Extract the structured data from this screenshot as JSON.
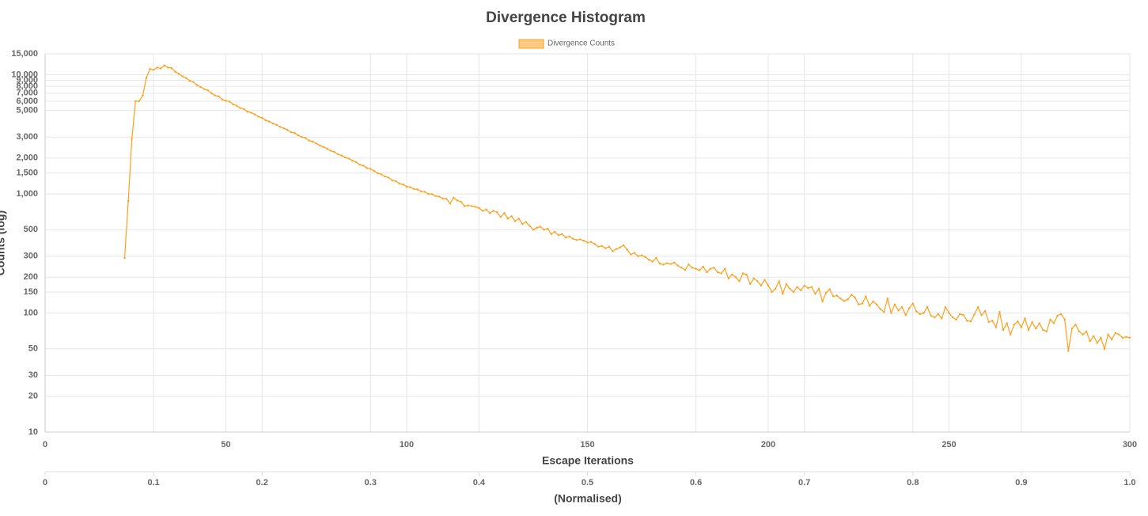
{
  "chart_data": {
    "type": "line",
    "title": "Divergence Histogram",
    "xlabel": "Escape Iterations",
    "ylabel": "Counts (log)",
    "x2label": "(Normalised)",
    "log_y": true,
    "grid": true,
    "legend": "top",
    "xlim": [
      0,
      300
    ],
    "xticks": [
      0,
      50,
      100,
      150,
      200,
      250,
      300
    ],
    "x2lim": [
      0,
      1
    ],
    "x2ticks": [
      0,
      0.1,
      0.2,
      0.3,
      0.4,
      0.5,
      0.6,
      0.7,
      0.8,
      0.9,
      {
        "value": 1,
        "label": "1.0"
      }
    ],
    "ylim": [
      10,
      15000
    ],
    "yticks": [
      10,
      20,
      30,
      50,
      100,
      150,
      200,
      300,
      500,
      {
        "value": 1000,
        "label": "1,000"
      },
      {
        "value": 1500,
        "label": "1,500"
      },
      {
        "value": 2000,
        "label": "2,000"
      },
      {
        "value": 3000,
        "label": "3,000"
      },
      {
        "value": 5000,
        "label": "5,000"
      },
      {
        "value": 6000,
        "label": "6,000"
      },
      {
        "value": 7000,
        "label": "7,000"
      },
      {
        "value": 8000,
        "label": "8,000"
      },
      {
        "value": 9000,
        "label": "9,000"
      },
      {
        "value": 10000,
        "label": "10,000"
      },
      {
        "value": 15000,
        "label": "15,000"
      }
    ],
    "x": [
      22,
      23,
      24,
      25,
      26,
      27,
      28,
      29,
      30,
      31,
      32,
      33,
      34,
      35,
      36,
      37,
      38,
      39,
      40,
      41,
      42,
      43,
      44,
      45,
      46,
      47,
      48,
      49,
      50,
      51,
      52,
      53,
      54,
      55,
      56,
      57,
      58,
      59,
      60,
      61,
      62,
      63,
      64,
      65,
      66,
      67,
      68,
      69,
      70,
      71,
      72,
      73,
      74,
      75,
      76,
      77,
      78,
      79,
      80,
      81,
      82,
      83,
      84,
      85,
      86,
      87,
      88,
      89,
      90,
      91,
      92,
      93,
      94,
      95,
      96,
      97,
      98,
      99,
      100,
      101,
      102,
      103,
      104,
      105,
      106,
      107,
      108,
      109,
      110,
      111,
      112,
      113,
      114,
      115,
      116,
      117,
      118,
      119,
      120,
      121,
      122,
      123,
      124,
      125,
      126,
      127,
      128,
      129,
      130,
      131,
      132,
      133,
      134,
      135,
      136,
      137,
      138,
      139,
      140,
      141,
      142,
      143,
      144,
      145,
      146,
      147,
      148,
      149,
      150,
      151,
      152,
      153,
      154,
      155,
      156,
      157,
      158,
      159,
      160,
      161,
      162,
      163,
      164,
      165,
      166,
      167,
      168,
      169,
      170,
      171,
      172,
      173,
      174,
      175,
      176,
      177,
      178,
      179,
      180,
      181,
      182,
      183,
      184,
      185,
      186,
      187,
      188,
      189,
      190,
      191,
      192,
      193,
      194,
      195,
      196,
      197,
      198,
      199,
      200,
      201,
      202,
      203,
      204,
      205,
      206,
      207,
      208,
      209,
      210,
      211,
      212,
      213,
      214,
      215,
      216,
      217,
      218,
      219,
      220,
      221,
      222,
      223,
      224,
      225,
      226,
      227,
      228,
      229,
      230,
      231,
      232,
      233,
      234,
      235,
      236,
      237,
      238,
      239,
      240,
      241,
      242,
      243,
      244,
      245,
      246,
      247,
      248,
      249,
      250,
      251,
      252,
      253,
      254,
      255,
      256,
      257,
      258,
      259,
      260,
      261,
      262,
      263,
      264,
      265,
      266,
      267,
      268,
      269,
      270,
      271,
      272,
      273,
      274,
      275,
      276,
      277,
      278,
      279,
      280,
      281,
      282,
      283,
      284,
      285,
      286,
      287,
      288,
      289,
      290,
      291,
      292,
      293,
      294,
      295,
      296,
      297,
      298,
      299,
      300
    ],
    "series": [
      {
        "name": "Divergence Counts",
        "color": "#ff9f1c",
        "values": [
          290,
          870,
          2900,
          6000,
          6000,
          6700,
          9400,
          11200,
          11000,
          11500,
          11300,
          12000,
          11500,
          11400,
          10600,
          10200,
          9700,
          9400,
          8900,
          8700,
          8200,
          7900,
          7600,
          7400,
          7000,
          6700,
          6600,
          6200,
          6050,
          5950,
          5650,
          5500,
          5250,
          5150,
          4900,
          4800,
          4650,
          4450,
          4350,
          4150,
          4050,
          3900,
          3800,
          3650,
          3550,
          3450,
          3300,
          3250,
          3100,
          3000,
          2950,
          2800,
          2750,
          2650,
          2550,
          2480,
          2400,
          2300,
          2250,
          2150,
          2100,
          2020,
          1980,
          1900,
          1850,
          1760,
          1730,
          1650,
          1620,
          1560,
          1490,
          1460,
          1400,
          1370,
          1300,
          1280,
          1220,
          1200,
          1150,
          1140,
          1100,
          1090,
          1050,
          1040,
          1000,
          995,
          960,
          950,
          915,
          910,
          830,
          930,
          880,
          860,
          790,
          800,
          790,
          780,
          760,
          720,
          740,
          690,
          720,
          700,
          640,
          690,
          620,
          650,
          590,
          620,
          560,
          580,
          540,
          500,
          520,
          530,
          500,
          510,
          460,
          480,
          450,
          460,
          430,
          440,
          420,
          410,
          415,
          405,
          390,
          395,
          380,
          360,
          365,
          350,
          360,
          330,
          345,
          355,
          370,
          340,
          310,
          320,
          300,
          305,
          295,
          280,
          270,
          290,
          260,
          255,
          262,
          258,
          265,
          250,
          240,
          230,
          255,
          240,
          235,
          228,
          245,
          220,
          235,
          240,
          220,
          215,
          235,
          195,
          210,
          200,
          185,
          215,
          210,
          175,
          195,
          185,
          170,
          190,
          170,
          150,
          160,
          185,
          145,
          175,
          160,
          150,
          165,
          155,
          170,
          162,
          165,
          145,
          160,
          125,
          148,
          158,
          138,
          140,
          132,
          126,
          130,
          142,
          135,
          118,
          120,
          138,
          115,
          125,
          118,
          108,
          102,
          132,
          100,
          118,
          105,
          112,
          96,
          110,
          120,
          103,
          98,
          100,
          112,
          95,
          92,
          98,
          90,
          112,
          100,
          92,
          88,
          98,
          96,
          86,
          85,
          97,
          112,
          96,
          104,
          84,
          86,
          76,
          102,
          72,
          82,
          66,
          80,
          85,
          76,
          90,
          72,
          84,
          74,
          82,
          72,
          70,
          88,
          82,
          95,
          98,
          88,
          48,
          74,
          80,
          70,
          66,
          70,
          58,
          64,
          56,
          62,
          50,
          66,
          60,
          68,
          66,
          62,
          63,
          62
        ]
      }
    ]
  }
}
